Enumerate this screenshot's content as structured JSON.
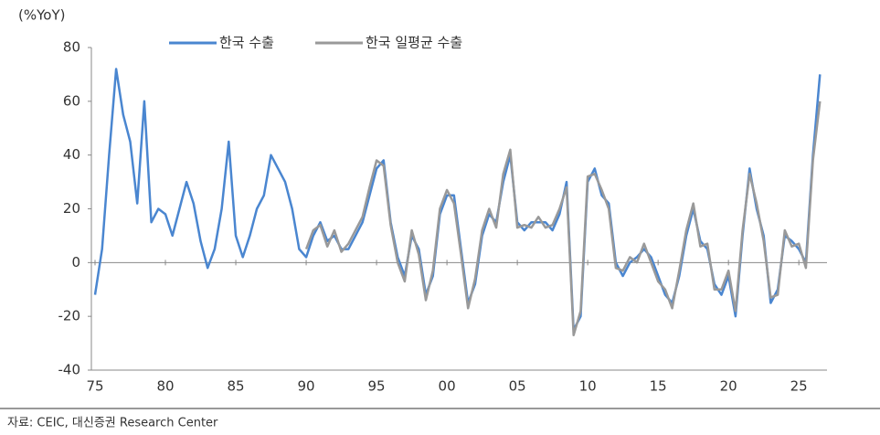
{
  "chart_data": {
    "type": "line",
    "ylabel": "(%YoY)",
    "source": "자료: CEIC, 대신증권 Research Center",
    "x": [
      1975,
      1975.5,
      1976,
      1976.5,
      1977,
      1977.5,
      1978,
      1978.5,
      1979,
      1979.5,
      1980,
      1980.5,
      1981,
      1981.5,
      1982,
      1982.5,
      1983,
      1983.5,
      1984,
      1984.5,
      1985,
      1985.5,
      1986,
      1986.5,
      1987,
      1987.5,
      1988,
      1988.5,
      1989,
      1989.5,
      1990,
      1990.5,
      1991,
      1991.5,
      1992,
      1992.5,
      1993,
      1993.5,
      1994,
      1994.5,
      1995,
      1995.5,
      1996,
      1996.5,
      1997,
      1997.5,
      1998,
      1998.5,
      1999,
      1999.5,
      2000,
      2000.5,
      2001,
      2001.5,
      2002,
      2002.5,
      2003,
      2003.5,
      2004,
      2004.5,
      2005,
      2005.5,
      2006,
      2006.5,
      2007,
      2007.5,
      2008,
      2008.5,
      2009,
      2009.5,
      2010,
      2010.5,
      2011,
      2011.5,
      2012,
      2012.5,
      2013,
      2013.5,
      2014,
      2014.5,
      2015,
      2015.5,
      2016,
      2016.5,
      2017,
      2017.5,
      2018,
      2018.5,
      2019,
      2019.5,
      2020,
      2020.5,
      2021,
      2021.5,
      2022,
      2022.5,
      2023,
      2023.5,
      2024,
      2024.5,
      2025,
      2025.5,
      2026,
      2026.5
    ],
    "series": [
      {
        "name": "한국 수출",
        "color": "#4a86d0",
        "values": [
          -12,
          5,
          40,
          72,
          55,
          45,
          22,
          60,
          15,
          20,
          18,
          10,
          20,
          30,
          22,
          8,
          -2,
          5,
          20,
          45,
          10,
          2,
          10,
          20,
          25,
          40,
          35,
          30,
          20,
          5,
          2,
          10,
          15,
          8,
          10,
          5,
          5,
          10,
          15,
          25,
          35,
          38,
          15,
          2,
          -5,
          10,
          5,
          -12,
          -5,
          18,
          25,
          25,
          5,
          -15,
          -8,
          10,
          18,
          15,
          30,
          40,
          15,
          12,
          15,
          15,
          15,
          12,
          18,
          30,
          -25,
          -20,
          30,
          35,
          25,
          22,
          0,
          -5,
          0,
          2,
          5,
          2,
          -5,
          -12,
          -15,
          -5,
          10,
          20,
          8,
          5,
          -8,
          -12,
          -5,
          -20,
          10,
          35,
          20,
          10,
          -15,
          -10,
          10,
          8,
          5,
          0,
          40,
          70
        ]
      },
      {
        "name": "한국 일평균 수출",
        "color": "#999999",
        "values": [
          null,
          null,
          null,
          null,
          null,
          null,
          null,
          null,
          null,
          null,
          null,
          null,
          null,
          null,
          null,
          null,
          null,
          null,
          null,
          null,
          null,
          null,
          null,
          null,
          null,
          null,
          null,
          null,
          null,
          null,
          5,
          12,
          14,
          6,
          12,
          4,
          7,
          12,
          17,
          28,
          38,
          36,
          14,
          0,
          -7,
          12,
          3,
          -14,
          -3,
          20,
          27,
          22,
          3,
          -17,
          -6,
          12,
          20,
          13,
          33,
          42,
          13,
          14,
          13,
          17,
          13,
          14,
          20,
          28,
          -27,
          -18,
          32,
          33,
          27,
          20,
          -2,
          -3,
          2,
          0,
          7,
          0,
          -7,
          -10,
          -17,
          -3,
          12,
          22,
          6,
          7,
          -10,
          -10,
          -3,
          -18,
          12,
          33,
          22,
          8,
          -13,
          -12,
          12,
          6,
          7,
          -2,
          38,
          60
        ]
      }
    ],
    "xlim": [
      1975,
      2027
    ],
    "xticks": [
      {
        "value": 1975,
        "label": "75"
      },
      {
        "value": 1980,
        "label": "80"
      },
      {
        "value": 1985,
        "label": "85"
      },
      {
        "value": 1990,
        "label": "90"
      },
      {
        "value": 1995,
        "label": "95"
      },
      {
        "value": 2000,
        "label": "00"
      },
      {
        "value": 2005,
        "label": "05"
      },
      {
        "value": 2010,
        "label": "10"
      },
      {
        "value": 2015,
        "label": "15"
      },
      {
        "value": 2020,
        "label": "20"
      },
      {
        "value": 2025,
        "label": "25"
      }
    ],
    "ylim": [
      -40,
      80
    ],
    "yticks": [
      -40,
      -20,
      0,
      20,
      40,
      60,
      80
    ]
  }
}
